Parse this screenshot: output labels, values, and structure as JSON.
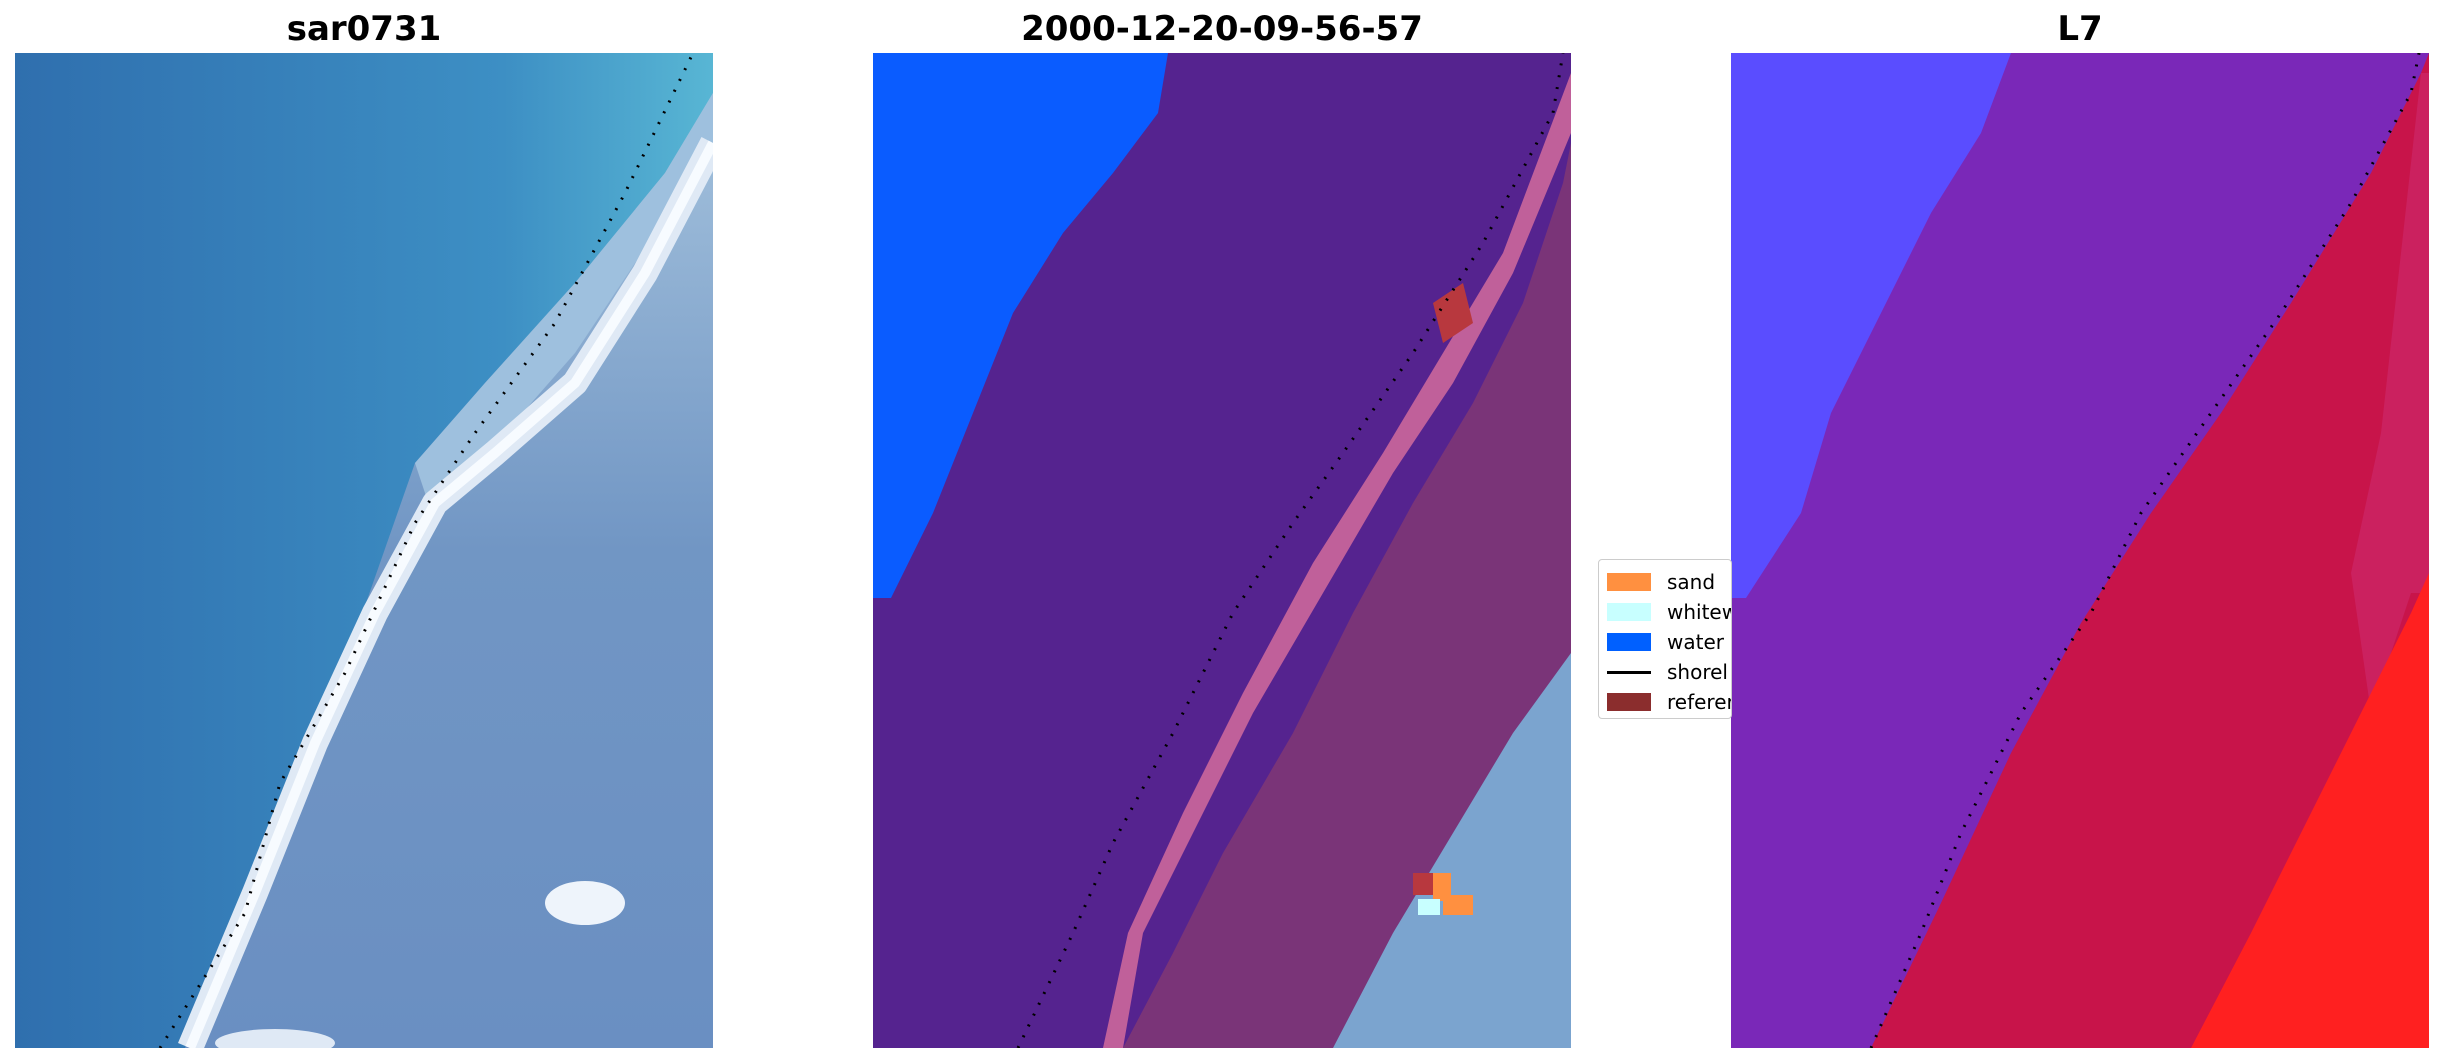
{
  "panels": [
    {
      "title": "sar0731",
      "image": "rgb-composite"
    },
    {
      "title": "2000-12-20-09-56-57",
      "image": "classified-composite"
    },
    {
      "title": "L7",
      "image": "index-colormap"
    }
  ],
  "legend": {
    "items": [
      {
        "label": "sand",
        "color": "#ff9040",
        "kind": "patch"
      },
      {
        "label": "whitew",
        "color": "#c8ffff",
        "kind": "patch"
      },
      {
        "label": "water",
        "color": "#0060ff",
        "kind": "patch"
      },
      {
        "label": "shorel",
        "color": "#000000",
        "kind": "line"
      },
      {
        "label": "referer",
        "color": "#8b2d2d",
        "kind": "patch"
      }
    ]
  },
  "colors": {
    "water_class": "#0a5cff",
    "purple_class": "#55238f",
    "pink_band": "#c0609a",
    "land_dark": "#7a3478",
    "sar_sea": "#3579b4",
    "sar_sea_light": "#4ea6cc",
    "sar_land": "#6e94c3",
    "l7_blue": "#5a4dff",
    "l7_purple": "#7a28b8",
    "l7_red": "#c8144a",
    "l7_bright": "#ff2020"
  }
}
